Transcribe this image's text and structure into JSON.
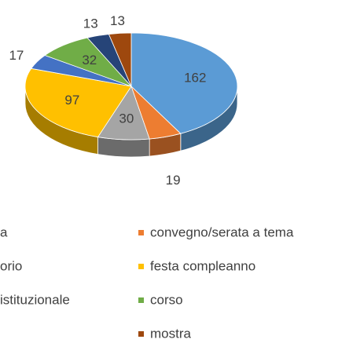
{
  "chart_data": {
    "type": "pie",
    "categories": [
      "a",
      "convegno/serata a tema",
      "orio",
      "festa compleanno",
      "istituzionale",
      "corso",
      null,
      "mostra"
    ],
    "values": [
      162,
      19,
      30,
      97,
      17,
      32,
      13,
      13
    ],
    "colors": [
      "#5b9bd5",
      "#ed7d31",
      "#a5a5a5",
      "#ffc000",
      "#4472c4",
      "#70ad47",
      "#264478",
      "#9e480e"
    ]
  }
}
